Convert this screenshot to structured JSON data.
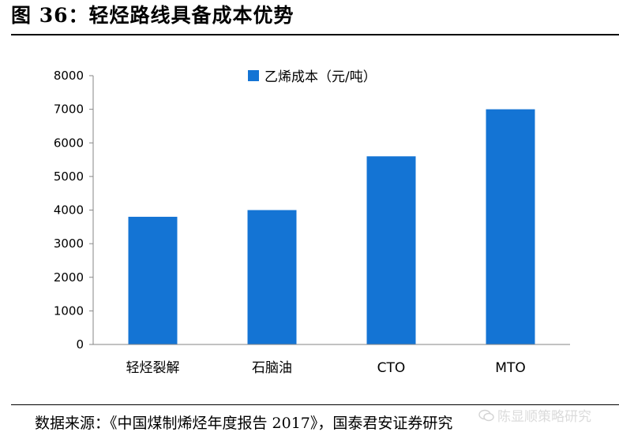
{
  "figure": {
    "title": "图 36：轻烃路线具备成本优势",
    "source": "数据来源：《中国煤制烯烃年度报告 2017》，国泰君安证券研究",
    "watermark": "陈显顺策略研究"
  },
  "colors": {
    "bar": "#1474d4",
    "axis": "#868686",
    "rule": "#000000"
  },
  "chart_data": {
    "type": "bar",
    "categories": [
      "轻烃裂解",
      "石脑油",
      "CTO",
      "MTO"
    ],
    "series": [
      {
        "name": "乙烯成本（元/吨）",
        "values": [
          3800,
          4000,
          5600,
          7000
        ]
      }
    ],
    "ylim": [
      0,
      8000
    ],
    "yticks": [
      "0",
      "1000",
      "2000",
      "3000",
      "4000",
      "5000",
      "6000",
      "7000",
      "8000"
    ],
    "grid": false,
    "legend_position": "top-center"
  }
}
